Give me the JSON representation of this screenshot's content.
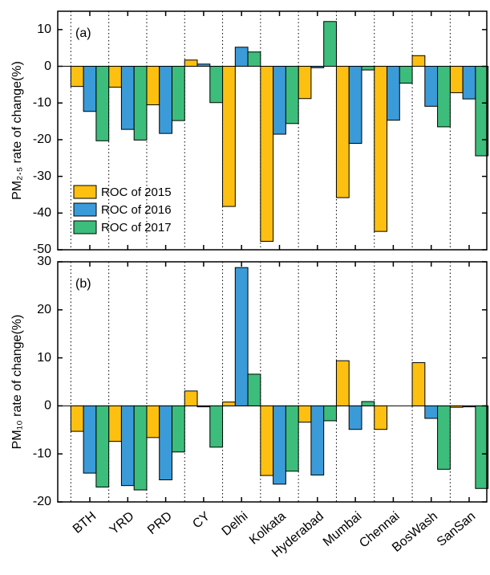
{
  "chart_data": [
    {
      "type": "bar",
      "panel_label": "(a)",
      "ylabel": "PM₂.₅ rate of change(%)",
      "ylim": [
        -50,
        15
      ],
      "yticks": [
        -50,
        -40,
        -30,
        -20,
        -10,
        0,
        10
      ],
      "legend": "lower left",
      "series": [
        {
          "name": "ROC of 2015",
          "color": "#fdc010",
          "values": [
            -5.5,
            -5.7,
            -10.5,
            1.7,
            -38.2,
            -47.7,
            -8.8,
            -35.8,
            -45,
            2.9,
            -7.2
          ]
        },
        {
          "name": "ROC of 2016",
          "color": "#3a9bd8",
          "values": [
            -12.3,
            -17.2,
            -18.3,
            0.6,
            5.2,
            -18.5,
            -0.4,
            -21,
            -14.7,
            -10.9,
            -8.9
          ]
        },
        {
          "name": "ROC of 2017",
          "color": "#3dbd7b",
          "values": [
            -20.3,
            -20.1,
            -14.8,
            -9.9,
            3.9,
            -15.6,
            12.2,
            -1,
            -4.6,
            -16.5,
            -24.4
          ]
        }
      ]
    },
    {
      "type": "bar",
      "panel_label": "(b)",
      "ylabel": "PM₁₀ rate of change(%)",
      "categories": [
        "BTH",
        "YRD",
        "PRD",
        "CY",
        "Delhi",
        "Kolkata",
        "Hyderabad",
        "Mumbai",
        "Chennai",
        "BosWash",
        "SanSan"
      ],
      "ylim": [
        -20,
        30
      ],
      "yticks": [
        -20,
        -10,
        0,
        10,
        20,
        30
      ],
      "series": [
        {
          "color": "#fdc010",
          "values": [
            -5.3,
            -7.4,
            -6.6,
            3.1,
            0.8,
            -14.5,
            -3.4,
            9.4,
            -4.9,
            9,
            -0.3
          ]
        },
        {
          "color": "#3a9bd8",
          "values": [
            -14,
            -16.6,
            -15.4,
            -0.2,
            28.8,
            -16.3,
            -14.4,
            -4.9,
            null,
            -2.6,
            -0.2
          ]
        },
        {
          "color": "#3dbd7b",
          "values": [
            -16.9,
            -17.5,
            -9.6,
            -8.6,
            6.6,
            -13.6,
            -3.1,
            0.9,
            null,
            -13.2,
            -17.2
          ]
        }
      ]
    }
  ]
}
